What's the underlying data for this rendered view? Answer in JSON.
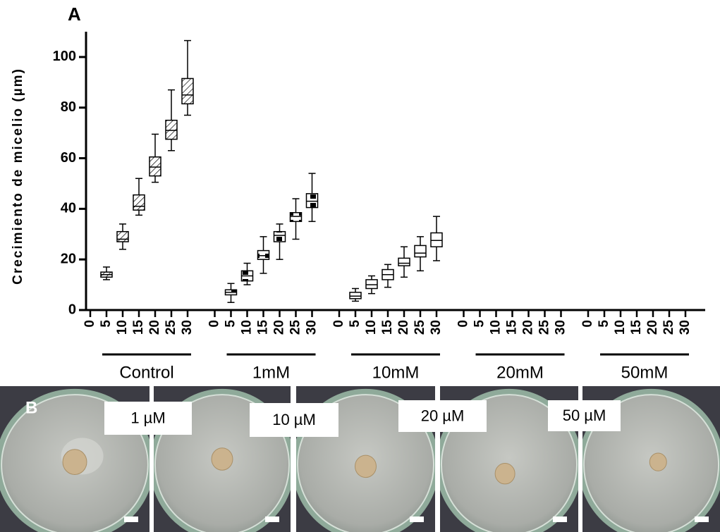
{
  "chart_data": {
    "type": "box",
    "panel_label": "A",
    "y_label": "Crecimiento de micelio (µm)",
    "ylim": [
      0,
      110
    ],
    "yticks": [
      0,
      20,
      40,
      60,
      80,
      100
    ],
    "x_labels": [
      0,
      5,
      10,
      15,
      20,
      25,
      30
    ],
    "groups": [
      {
        "name": "Control",
        "fill": "hatch",
        "boxes": [
          null,
          [
            12,
            13,
            14,
            15,
            17
          ],
          [
            24,
            27,
            28,
            31,
            34
          ],
          [
            37.5,
            39.5,
            41,
            45.5,
            52
          ],
          [
            50.5,
            53,
            56.5,
            60.5,
            69.5
          ],
          [
            63,
            67.5,
            71,
            75,
            87
          ],
          [
            77,
            81.5,
            85,
            91.5,
            106.5
          ]
        ]
      },
      {
        "name": "1mM",
        "fill": "checker",
        "boxes": [
          null,
          [
            3,
            6,
            7,
            8,
            10.5
          ],
          [
            10,
            11.5,
            13.5,
            15.5,
            18.5
          ],
          [
            14.5,
            20,
            21.5,
            23.5,
            29
          ],
          [
            20,
            27,
            29.5,
            31,
            34
          ],
          [
            28,
            35,
            37,
            38.5,
            44
          ],
          [
            35,
            40.5,
            43,
            46,
            54
          ]
        ]
      },
      {
        "name": "10mM",
        "fill": "white",
        "boxes": [
          null,
          [
            3.5,
            4.5,
            5.5,
            7,
            8.5
          ],
          [
            6.5,
            8.5,
            10,
            12,
            13.5
          ],
          [
            9,
            12,
            14,
            16,
            18
          ],
          [
            13,
            17.5,
            18.5,
            20.5,
            25
          ],
          [
            15.5,
            21,
            22.5,
            25.5,
            29
          ],
          [
            19.5,
            25,
            27.5,
            30.5,
            37
          ]
        ]
      },
      {
        "name": "20mM",
        "fill": "white",
        "boxes": [
          null,
          [
            0,
            0,
            0,
            0,
            0
          ],
          [
            0,
            0,
            0,
            0,
            0
          ],
          [
            0,
            0,
            0,
            0,
            0
          ],
          [
            0,
            0,
            0,
            0,
            0
          ],
          [
            0,
            0,
            0,
            0,
            0
          ],
          [
            0,
            0,
            0,
            0,
            0
          ]
        ]
      },
      {
        "name": "50mM",
        "fill": "white",
        "boxes": [
          null,
          [
            0,
            0,
            0,
            0,
            0
          ],
          [
            0,
            0,
            0,
            0,
            0
          ],
          [
            0,
            0,
            0,
            0,
            0
          ],
          [
            0,
            0,
            0,
            0,
            0
          ],
          [
            0,
            0,
            0,
            0,
            0
          ],
          [
            0,
            0,
            0,
            0,
            0
          ]
        ]
      }
    ]
  },
  "panel_b": {
    "label": "B",
    "dish_labels": [
      "1 µM",
      "10 µM",
      "20 µM",
      "50 µM"
    ]
  }
}
